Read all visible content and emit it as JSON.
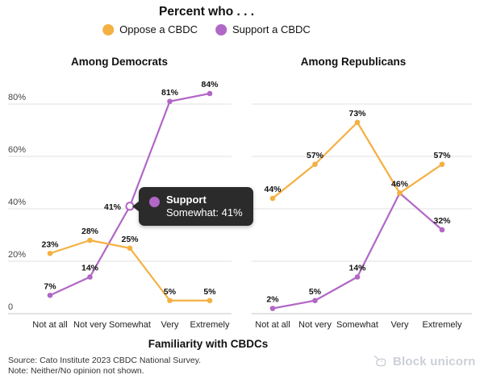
{
  "header": {
    "title": "Percent who . . ."
  },
  "legend": [
    {
      "label": "Oppose a CBDC",
      "color": "#F4B042"
    },
    {
      "label": "Support a CBDC",
      "color": "#B167C6"
    }
  ],
  "x_axis": {
    "title": "Familiarity with CBDCs",
    "categories": [
      "Not at all",
      "Not very",
      "Somewhat",
      "Very",
      "Extremely"
    ]
  },
  "y_axis": {
    "ticks": [
      "0",
      "20%",
      "40%",
      "60%",
      "80%"
    ],
    "values": [
      0,
      20,
      40,
      60,
      80
    ]
  },
  "chart_data": [
    {
      "type": "line",
      "title": "Among Democrats",
      "categories": [
        "Not at all",
        "Not very",
        "Somewhat",
        "Very",
        "Extremely"
      ],
      "series": [
        {
          "name": "Oppose a CBDC",
          "color": "#F4B042",
          "values": [
            23,
            28,
            25,
            5,
            5
          ]
        },
        {
          "name": "Support a CBDC",
          "color": "#B167C6",
          "values": [
            7,
            14,
            41,
            81,
            84
          ]
        }
      ],
      "ylim": [
        0,
        88
      ],
      "grid": true,
      "legend_position": "top"
    },
    {
      "type": "line",
      "title": "Among Republicans",
      "categories": [
        "Not at all",
        "Not very",
        "Somewhat",
        "Very",
        "Extremely"
      ],
      "series": [
        {
          "name": "Oppose a CBDC",
          "color": "#F4B042",
          "values": [
            44,
            57,
            73,
            46,
            57
          ]
        },
        {
          "name": "Support a CBDC",
          "color": "#B167C6",
          "values": [
            2,
            5,
            14,
            46,
            32
          ]
        }
      ],
      "ylim": [
        0,
        88
      ],
      "grid": true,
      "legend_position": "top"
    }
  ],
  "tooltip": {
    "series": "Support",
    "line": "Somewhat: 41%",
    "color": "#B167C6",
    "background": "#2b2b2b"
  },
  "footer": {
    "source": "Source: Cato Institute 2023 CBDC National Survey.",
    "note": "Note: Neither/No opinion not shown."
  },
  "watermark": {
    "label": "Block unicorn"
  }
}
